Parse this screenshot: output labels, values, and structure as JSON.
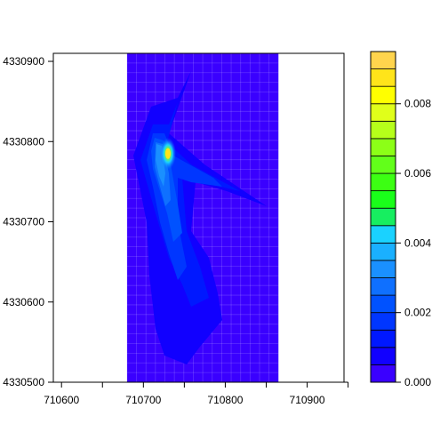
{
  "chart_data": {
    "type": "heatmap",
    "title": "",
    "xlabel": "",
    "ylabel": "",
    "xlim": [
      710590,
      710945
    ],
    "ylim": [
      4330500,
      4330910
    ],
    "x_ticks": [
      710600,
      710650,
      710700,
      710750,
      710800,
      710850,
      710900,
      710950
    ],
    "x_tick_labels": [
      "710600",
      "",
      "710700",
      "",
      "710800",
      "",
      "710900",
      ""
    ],
    "y_ticks": [
      4330500,
      4330600,
      4330700,
      4330800,
      4330900
    ],
    "y_tick_labels": [
      "4330500",
      "4330600",
      "4330700",
      "4330800",
      "4330900"
    ],
    "data_extent": {
      "x": [
        710680,
        710865
      ],
      "y": [
        4330500,
        4330910
      ]
    },
    "grid": true,
    "peak": {
      "x": 710730,
      "y": 4330785,
      "value": 0.0092
    },
    "colorbar": {
      "levels": [
        0.0,
        0.0005,
        0.001,
        0.0015,
        0.002,
        0.0025,
        0.003,
        0.0035,
        0.004,
        0.0045,
        0.005,
        0.0055,
        0.006,
        0.0065,
        0.007,
        0.0075,
        0.008,
        0.0085,
        0.009,
        0.0095
      ],
      "colors": [
        "#3a00ff",
        "#1100ff",
        "#0018ff",
        "#0036ff",
        "#0052ff",
        "#0f70ff",
        "#1a90ff",
        "#1ab0ff",
        "#1ad2ff",
        "#17ee60",
        "#1aff1a",
        "#3cff13",
        "#62ff1a",
        "#8cff17",
        "#b6ff1a",
        "#e0ff1a",
        "#ffff00",
        "#ffe41a",
        "#ffd44d",
        "#ffd07a"
      ],
      "tick_values": [
        0.0,
        0.002,
        0.004,
        0.006,
        0.008
      ],
      "tick_labels": [
        "0.000",
        "0.002",
        "0.004",
        "0.006",
        "0.008"
      ]
    },
    "legend_position": "right"
  }
}
